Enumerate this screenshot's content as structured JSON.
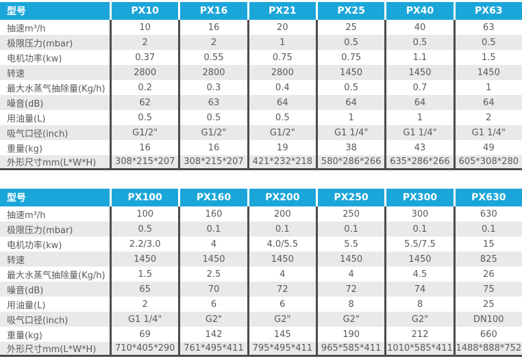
{
  "colors": {
    "header_bg": "#1BA6D9",
    "header_text": "#FFFFFF",
    "row_alt_bg": "#E9E9E9",
    "row_bg": "#FFFFFF",
    "text_color": "#58595B",
    "border_dark": "#4B4B4D",
    "page_bg": "#FFFFFF"
  },
  "tables": [
    {
      "corner_label": "型号",
      "columns": [
        "PX10",
        "PX16",
        "PX21",
        "PX25",
        "PX40",
        "PX63"
      ],
      "rows": [
        {
          "label": "抽速m³/h",
          "values": [
            "10",
            "16",
            "20",
            "25",
            "40",
            "63"
          ]
        },
        {
          "label": "极限压力(mbar)",
          "values": [
            "2",
            "2",
            "1",
            "0.5",
            "0.5",
            "0.5"
          ]
        },
        {
          "label": "电机功率(kw)",
          "values": [
            "0.37",
            "0.55",
            "0.75",
            "0.75",
            "1.1",
            "1.5"
          ]
        },
        {
          "label": "转速",
          "values": [
            "2800",
            "2800",
            "2800",
            "1450",
            "1450",
            "1450"
          ]
        },
        {
          "label": "最大水蒸气抽除量(Kg/h)",
          "values": [
            "0.2",
            "0.3",
            "0.4",
            "0.5",
            "0.7",
            "1"
          ]
        },
        {
          "label": "噪音(dB)",
          "values": [
            "62",
            "63",
            "64",
            "64",
            "64",
            "64"
          ]
        },
        {
          "label": "用油量(L)",
          "values": [
            "0.5",
            "0.5",
            "0.5",
            "1",
            "1",
            "2"
          ]
        },
        {
          "label": "吸气口径(inch)",
          "values": [
            "G1/2\"",
            "G1/2\"",
            "G1/2\"",
            "G1 1/4\"",
            "G1 1/4\"",
            "G1 1/4\""
          ]
        },
        {
          "label": "重量(kg)",
          "values": [
            "16",
            "16",
            "19",
            "38",
            "43",
            "49"
          ]
        },
        {
          "label": "外形尺寸mm(L*W*H)",
          "values": [
            "308*215*207",
            "308*215*207",
            "421*232*218",
            "580*286*266",
            "635*286*266",
            "605*308*280"
          ]
        }
      ]
    },
    {
      "corner_label": "型号",
      "columns": [
        "PX100",
        "PX160",
        "PX200",
        "PX250",
        "PX300",
        "PX630"
      ],
      "rows": [
        {
          "label": "抽速m³/h",
          "values": [
            "100",
            "160",
            "200",
            "250",
            "300",
            "630"
          ]
        },
        {
          "label": "极限压力(mbar)",
          "values": [
            "0.5",
            "0.1",
            "0.1",
            "0.1",
            "0.1",
            "0.1"
          ]
        },
        {
          "label": "电机功率(kw)",
          "values": [
            "2.2/3.0",
            "4",
            "4.0/5.5",
            "5.5",
            "5.5/7.5",
            "15"
          ]
        },
        {
          "label": "转速",
          "values": [
            "1450",
            "1450",
            "1450",
            "1450",
            "1450",
            "825"
          ]
        },
        {
          "label": "最大水蒸气抽除量(Kg/h)",
          "values": [
            "1.5",
            "2.5",
            "4",
            "4",
            "4.5",
            "26"
          ]
        },
        {
          "label": "噪音(dB)",
          "values": [
            "65",
            "70",
            "72",
            "72",
            "74",
            "75"
          ]
        },
        {
          "label": "用油量(L)",
          "values": [
            "2",
            "6",
            "6",
            "8",
            "8",
            "25"
          ]
        },
        {
          "label": "吸气口径(inch)",
          "values": [
            "G1 1/4\"",
            "G2\"",
            "G2\"",
            "G2\"",
            "G2\"",
            "DN100"
          ]
        },
        {
          "label": "重量(kg)",
          "values": [
            "69",
            "142",
            "145",
            "190",
            "212",
            "660"
          ]
        },
        {
          "label": "外形尺寸mm(L*W*H)",
          "values": [
            "710*405*290",
            "761*495*411",
            "795*495*411",
            "965*585*411",
            "1010*585*411",
            "1488*888*752"
          ]
        }
      ]
    }
  ]
}
